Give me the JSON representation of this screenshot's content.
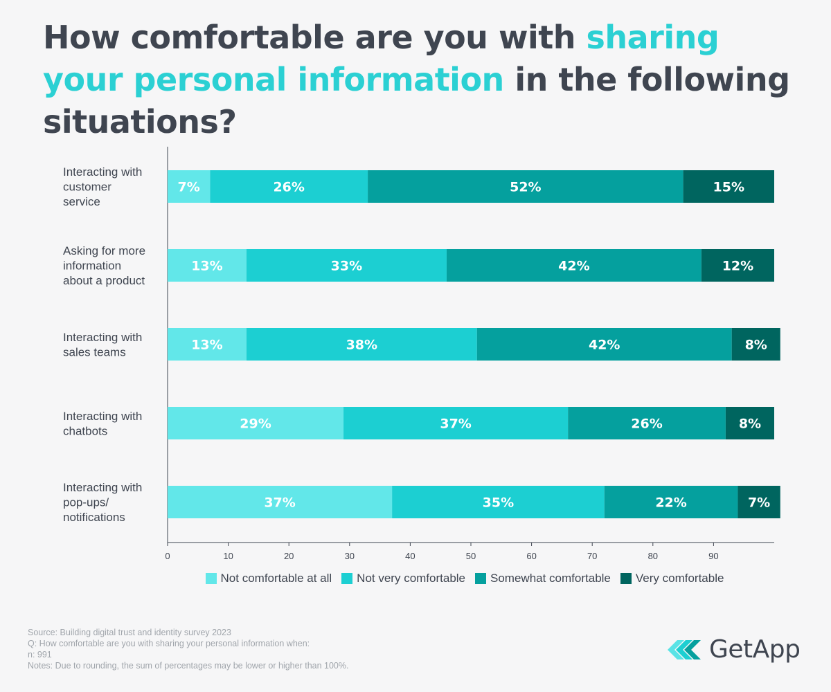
{
  "title": {
    "part1": "How comfortable are you with ",
    "highlight": "sharing your personal information",
    "part2": " in the following situations?"
  },
  "colors": {
    "accent": "#2bd0d3",
    "text": "#3f4550",
    "series": [
      "#62e7e9",
      "#1ccfd2",
      "#05a09e",
      "#00655f"
    ]
  },
  "chart_data": {
    "type": "bar",
    "orientation": "horizontal",
    "stacked": true,
    "categories": [
      [
        "Interacting with",
        "customer",
        "service"
      ],
      [
        "Asking for more",
        "information",
        "about a product"
      ],
      [
        "Interacting with",
        "sales teams"
      ],
      [
        "Interacting with",
        "chatbots"
      ],
      [
        "Interacting with",
        "pop-ups/",
        "notifications"
      ]
    ],
    "series": [
      {
        "name": "Not comfortable at all",
        "values": [
          7,
          13,
          13,
          29,
          37
        ]
      },
      {
        "name": "Not very comfortable",
        "values": [
          26,
          33,
          38,
          37,
          35
        ]
      },
      {
        "name": "Somewhat comfortable",
        "values": [
          52,
          42,
          42,
          26,
          22
        ]
      },
      {
        "name": "Very comfortable",
        "values": [
          15,
          12,
          8,
          8,
          7
        ]
      }
    ],
    "xticks": [
      0,
      10,
      20,
      30,
      40,
      50,
      60,
      70,
      80,
      90
    ],
    "xlim": [
      0,
      100
    ],
    "value_suffix": "%",
    "legend_position": "bottom"
  },
  "footer": {
    "source": "Source: Building digital trust and identity survey 2023",
    "question": "Q: How comfortable are you with sharing your personal information when:",
    "n": "n: 991",
    "notes": "Notes: Due to rounding, the sum of percentages may be lower or higher than 100%."
  },
  "logo": {
    "text": "GetApp"
  }
}
